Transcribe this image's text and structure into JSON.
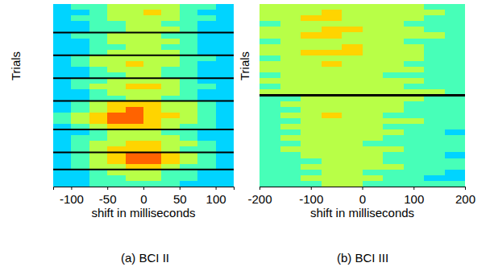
{
  "chart_data": [
    {
      "type": "heatmap",
      "title": "(a) BCI II",
      "xlabel": "shift in milliseconds",
      "ylabel": "Trials",
      "xlim": [
        -125,
        125
      ],
      "xticks": [
        -100,
        -50,
        0,
        50,
        100
      ],
      "ylim": [
        0,
        32
      ],
      "tick_labels": "x",
      "x_edges": [
        -125,
        -100,
        -75,
        -50,
        -25,
        0,
        25,
        50,
        75,
        100,
        125
      ],
      "color_range": [
        0,
        9
      ],
      "separators": [
        5,
        9,
        13,
        17,
        22,
        26,
        29
      ],
      "cells": [
        [
          3,
          4,
          4,
          5,
          5,
          5,
          5,
          4,
          4,
          3
        ],
        [
          3,
          3,
          4,
          5,
          5,
          6,
          5,
          4,
          3,
          3
        ],
        [
          3,
          4,
          4,
          5,
          5,
          5,
          5,
          4,
          4,
          3
        ],
        [
          3,
          3,
          4,
          4,
          5,
          5,
          4,
          4,
          3,
          3
        ],
        [
          3,
          3,
          4,
          4,
          5,
          5,
          5,
          4,
          3,
          3
        ],
        [
          3,
          4,
          4,
          5,
          5,
          5,
          4,
          4,
          3,
          3
        ],
        [
          3,
          3,
          4,
          5,
          5,
          5,
          5,
          4,
          3,
          3
        ],
        [
          3,
          3,
          4,
          4,
          5,
          5,
          4,
          4,
          3,
          3
        ],
        [
          3,
          3,
          4,
          5,
          5,
          5,
          5,
          4,
          3,
          3
        ],
        [
          3,
          4,
          5,
          5,
          5,
          5,
          5,
          4,
          4,
          3
        ],
        [
          3,
          4,
          5,
          5,
          6,
          5,
          5,
          4,
          3,
          3
        ],
        [
          3,
          3,
          4,
          5,
          5,
          5,
          4,
          4,
          3,
          3
        ],
        [
          3,
          3,
          4,
          4,
          5,
          5,
          4,
          4,
          3,
          3
        ],
        [
          3,
          4,
          4,
          5,
          5,
          5,
          5,
          4,
          3,
          3
        ],
        [
          3,
          4,
          5,
          5,
          6,
          6,
          5,
          4,
          4,
          3
        ],
        [
          3,
          3,
          4,
          5,
          5,
          5,
          5,
          4,
          3,
          3
        ],
        [
          3,
          3,
          4,
          4,
          5,
          5,
          4,
          4,
          3,
          3
        ],
        [
          3,
          4,
          5,
          6,
          6,
          6,
          5,
          5,
          4,
          3
        ],
        [
          3,
          4,
          5,
          6,
          7,
          6,
          5,
          5,
          4,
          3
        ],
        [
          4,
          5,
          6,
          7,
          7,
          6,
          6,
          5,
          4,
          3
        ],
        [
          4,
          5,
          6,
          7,
          7,
          6,
          5,
          5,
          4,
          3
        ],
        [
          3,
          4,
          5,
          6,
          6,
          6,
          5,
          4,
          4,
          3
        ],
        [
          3,
          3,
          4,
          5,
          5,
          5,
          4,
          4,
          3,
          3
        ],
        [
          3,
          4,
          4,
          5,
          5,
          5,
          5,
          4,
          3,
          3
        ],
        [
          3,
          4,
          5,
          5,
          6,
          6,
          5,
          5,
          4,
          3
        ],
        [
          3,
          4,
          5,
          6,
          6,
          6,
          5,
          4,
          4,
          3
        ],
        [
          3,
          4,
          5,
          6,
          7,
          7,
          6,
          5,
          4,
          3
        ],
        [
          3,
          4,
          5,
          6,
          7,
          7,
          6,
          5,
          4,
          3
        ],
        [
          3,
          4,
          5,
          5,
          6,
          6,
          5,
          4,
          4,
          3
        ],
        [
          3,
          3,
          4,
          5,
          5,
          5,
          4,
          4,
          3,
          3
        ],
        [
          3,
          3,
          4,
          4,
          5,
          5,
          4,
          4,
          3,
          3
        ],
        [
          3,
          3,
          4,
          4,
          4,
          4,
          4,
          3,
          3,
          3
        ]
      ]
    },
    {
      "type": "heatmap",
      "title": "(b) BCI III",
      "xlabel": "shift in milliseconds",
      "ylabel": "Trials",
      "xlim": [
        -200,
        200
      ],
      "xticks": [
        -200,
        -100,
        0,
        100,
        200
      ],
      "ylim": [
        0,
        32
      ],
      "tick_labels": "x",
      "x_edges": [
        -200,
        -160,
        -120,
        -80,
        -40,
        0,
        40,
        80,
        120,
        160,
        200
      ],
      "color_range": [
        0,
        9
      ],
      "separators": [
        16
      ],
      "cells": [
        [
          5,
          5,
          5,
          5,
          5,
          5,
          5,
          5,
          4,
          4
        ],
        [
          5,
          5,
          5,
          6,
          5,
          5,
          5,
          5,
          5,
          4
        ],
        [
          5,
          5,
          6,
          6,
          5,
          5,
          5,
          5,
          4,
          4
        ],
        [
          4,
          5,
          5,
          5,
          5,
          5,
          5,
          4,
          4,
          4
        ],
        [
          5,
          5,
          5,
          6,
          6,
          5,
          5,
          5,
          4,
          4
        ],
        [
          5,
          5,
          6,
          6,
          5,
          5,
          5,
          5,
          5,
          4
        ],
        [
          4,
          5,
          5,
          5,
          5,
          5,
          5,
          4,
          4,
          4
        ],
        [
          5,
          5,
          5,
          5,
          6,
          5,
          5,
          5,
          4,
          4
        ],
        [
          5,
          5,
          6,
          6,
          6,
          5,
          5,
          5,
          4,
          4
        ],
        [
          4,
          5,
          5,
          5,
          5,
          5,
          5,
          5,
          4,
          4
        ],
        [
          5,
          5,
          5,
          6,
          5,
          5,
          5,
          4,
          4,
          4
        ],
        [
          5,
          5,
          5,
          5,
          5,
          5,
          5,
          5,
          4,
          4
        ],
        [
          4,
          5,
          5,
          5,
          5,
          5,
          4,
          4,
          4,
          4
        ],
        [
          5,
          5,
          5,
          5,
          5,
          5,
          5,
          5,
          4,
          4
        ],
        [
          4,
          5,
          5,
          5,
          5,
          5,
          5,
          4,
          4,
          4
        ],
        [
          5,
          5,
          5,
          5,
          5,
          5,
          5,
          5,
          5,
          4
        ],
        [
          4,
          4,
          5,
          5,
          5,
          5,
          5,
          5,
          4,
          4
        ],
        [
          4,
          5,
          5,
          5,
          5,
          5,
          5,
          4,
          4,
          4
        ],
        [
          4,
          4,
          5,
          5,
          5,
          5,
          5,
          4,
          4,
          4
        ],
        [
          4,
          5,
          5,
          6,
          5,
          5,
          4,
          4,
          4,
          4
        ],
        [
          4,
          4,
          5,
          5,
          5,
          5,
          5,
          5,
          4,
          4
        ],
        [
          4,
          5,
          5,
          5,
          5,
          5,
          4,
          4,
          4,
          4
        ],
        [
          4,
          4,
          5,
          5,
          5,
          5,
          5,
          4,
          4,
          3
        ],
        [
          4,
          5,
          5,
          5,
          5,
          5,
          4,
          4,
          4,
          4
        ],
        [
          4,
          4,
          5,
          5,
          5,
          4,
          4,
          4,
          4,
          4
        ],
        [
          4,
          5,
          5,
          5,
          5,
          5,
          5,
          4,
          4,
          4
        ],
        [
          4,
          4,
          5,
          5,
          5,
          5,
          4,
          4,
          4,
          3
        ],
        [
          4,
          4,
          4,
          5,
          5,
          5,
          4,
          4,
          4,
          4
        ],
        [
          4,
          4,
          5,
          5,
          5,
          5,
          5,
          4,
          4,
          4
        ],
        [
          4,
          4,
          4,
          5,
          5,
          4,
          4,
          4,
          4,
          3
        ],
        [
          4,
          4,
          5,
          5,
          5,
          5,
          4,
          4,
          3,
          3
        ],
        [
          4,
          4,
          4,
          5,
          5,
          4,
          4,
          4,
          4,
          4
        ]
      ]
    }
  ]
}
